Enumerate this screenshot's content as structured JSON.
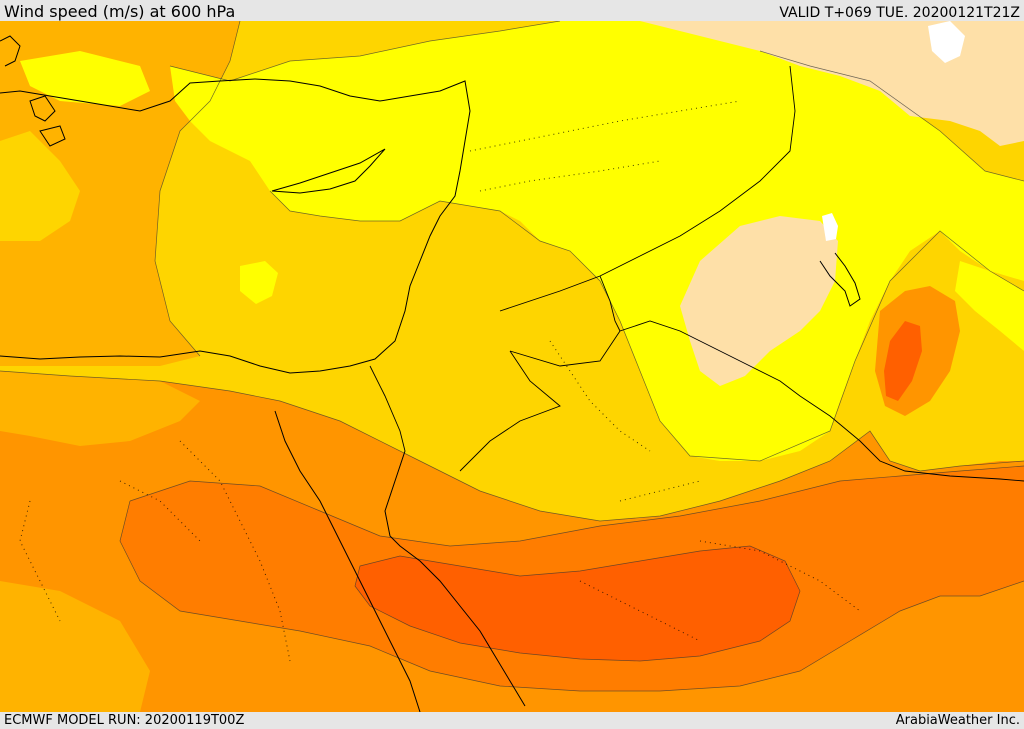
{
  "header": {
    "title": "Wind speed (m/s) at 600 hPa",
    "valid_time": "VALID T+069 TUE. 20200121T21Z"
  },
  "footer": {
    "model_run": "ECMWF MODEL RUN: 20200119T00Z",
    "credit": "ArabiaWeather Inc."
  },
  "map": {
    "colors": {
      "calm": "#fee0a8",
      "light": "#ffff00",
      "moderate": "#fed500",
      "moderate_strong": "#ffb300",
      "strong": "#ff9500",
      "very_strong": "#ff7d00",
      "strongest": "#ff6000",
      "no_data": "#ffffff"
    }
  }
}
